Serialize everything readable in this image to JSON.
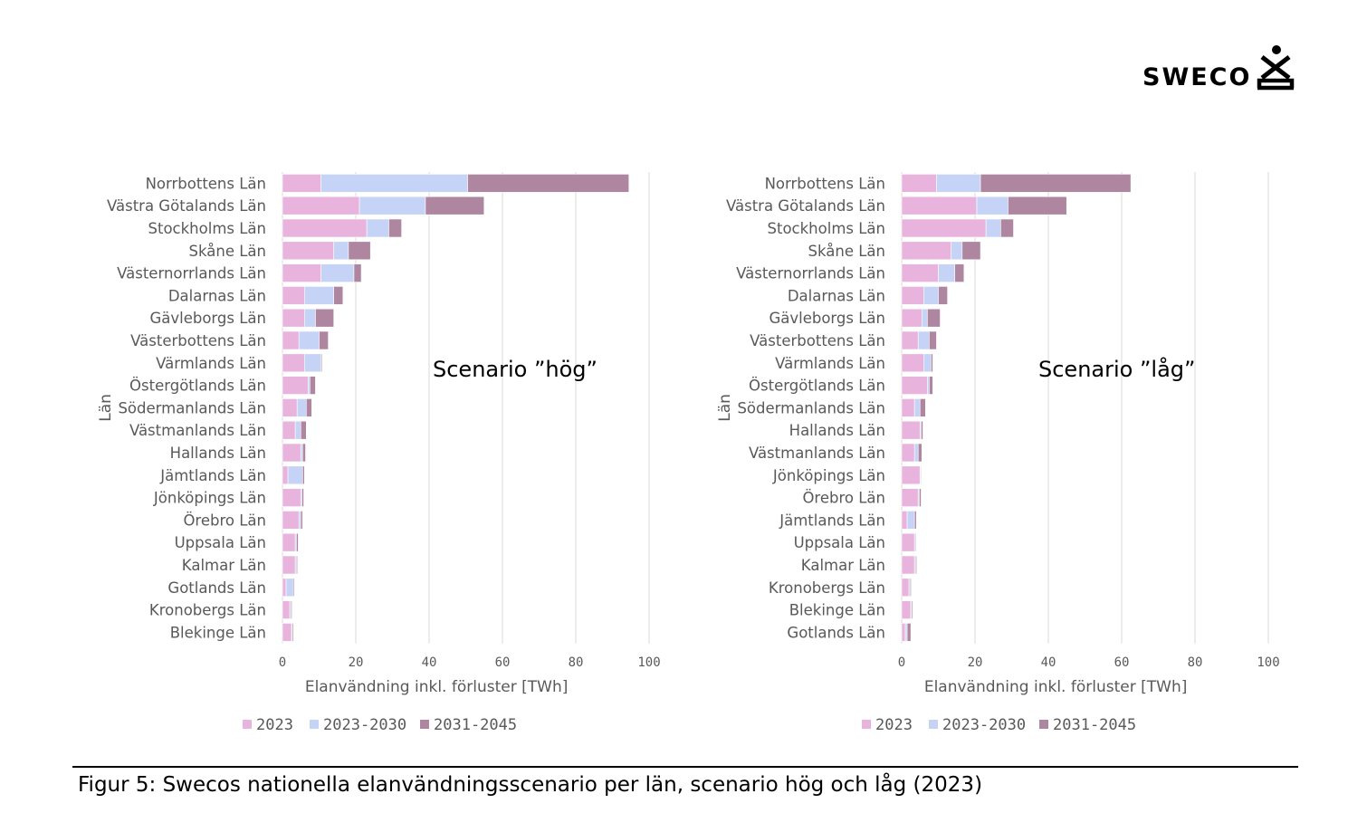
{
  "logo": {
    "text": "SWECO"
  },
  "caption": "Figur 5: Swecos nationella elanvändningsscenario per län, scenario hög och låg (2023)",
  "colors": {
    "s2023": "#e8b4dd",
    "s2030": "#c5d3f7",
    "s2045": "#ae86a0",
    "grid": "#d9d9d9"
  },
  "chart_data": [
    {
      "type": "bar",
      "orientation": "horizontal",
      "stacked": true,
      "title": "Scenario ”hög”",
      "xlabel": "Elanvändning inkl. förluster [TWh]",
      "ylabel": "Län",
      "xlim": [
        0,
        100
      ],
      "xticks": [
        "0",
        "20",
        "40",
        "60",
        "80",
        "100"
      ],
      "legend_position": "bottom",
      "categories": [
        "Norrbottens Län",
        "Västra Götalands Län",
        "Stockholms Län",
        "Skåne Län",
        "Västernorrlands Län",
        "Dalarnas Län",
        "Gävleborgs Län",
        "Västerbottens Län",
        "Värmlands Län",
        "Östergötlands Län",
        "Södermanlands Län",
        "Västmanlands Län",
        "Hallands Län",
        "Jämtlands Län",
        "Jönköpings Län",
        "Örebro Län",
        "Uppsala Län",
        "Kalmar Län",
        "Gotlands Län",
        "Kronobergs Län",
        "Blekinge Län"
      ],
      "series": [
        {
          "name": "2023",
          "values": [
            10.5,
            21,
            23,
            14,
            10.5,
            6,
            6,
            4.5,
            6,
            7,
            4,
            3.5,
            5,
            1.5,
            5,
            4.5,
            3.5,
            3.5,
            1,
            2,
            2.5
          ]
        },
        {
          "name": "2023-2030",
          "values": [
            40,
            18,
            6,
            4,
            9,
            8,
            3,
            5.5,
            4.5,
            0.5,
            2.5,
            1.5,
            0.5,
            4,
            0.3,
            0.5,
            0.3,
            0.3,
            2,
            0.3,
            0.2
          ]
        },
        {
          "name": "2031-2045",
          "values": [
            44,
            16,
            3.5,
            6,
            2,
            2.5,
            5,
            2.5,
            0.3,
            1.5,
            1.5,
            1.5,
            0.8,
            0.5,
            0.5,
            0.5,
            0.5,
            0.3,
            0.3,
            0.3,
            0.3
          ]
        }
      ]
    },
    {
      "type": "bar",
      "orientation": "horizontal",
      "stacked": true,
      "title": "Scenario ”låg”",
      "xlabel": "Elanvändning inkl. förluster [TWh]",
      "ylabel": "Län",
      "xlim": [
        0,
        100
      ],
      "xticks": [
        "0",
        "20",
        "40",
        "60",
        "80",
        "100"
      ],
      "legend_position": "bottom",
      "categories": [
        "Norrbottens Län",
        "Västra Götalands Län",
        "Stockholms Län",
        "Skåne Län",
        "Västernorrlands Län",
        "Dalarnas Län",
        "Gävleborgs Län",
        "Västerbottens Län",
        "Värmlands Län",
        "Östergötlands Län",
        "Södermanlands Län",
        "Hallands Län",
        "Västmanlands Län",
        "Jönköpings Län",
        "Örebro Län",
        "Jämtlands Län",
        "Uppsala Län",
        "Kalmar Län",
        "Kronobergs Län",
        "Blekinge Län",
        "Gotlands Län"
      ],
      "series": [
        {
          "name": "2023",
          "values": [
            9.5,
            20.5,
            23,
            13.5,
            10,
            6,
            5.5,
            4.5,
            6,
            7,
            3.5,
            5,
            3.5,
            5,
            4.5,
            1.5,
            3.5,
            3.5,
            2,
            2.5,
            1
          ]
        },
        {
          "name": "2023-2030",
          "values": [
            12,
            8.5,
            4,
            3,
            4.5,
            4,
            1.5,
            3,
            2,
            0.5,
            1.5,
            0.3,
            1,
            0.2,
            0.3,
            2,
            0.3,
            0.3,
            0.3,
            0.2,
            0.5
          ]
        },
        {
          "name": "2031-2045",
          "values": [
            41,
            16,
            3.5,
            5,
            2.5,
            2.5,
            3.5,
            2,
            0.5,
            1,
            1.5,
            0.5,
            1,
            0.2,
            0.5,
            0.5,
            0.2,
            0.3,
            0.3,
            0.3,
            1
          ]
        }
      ]
    }
  ]
}
